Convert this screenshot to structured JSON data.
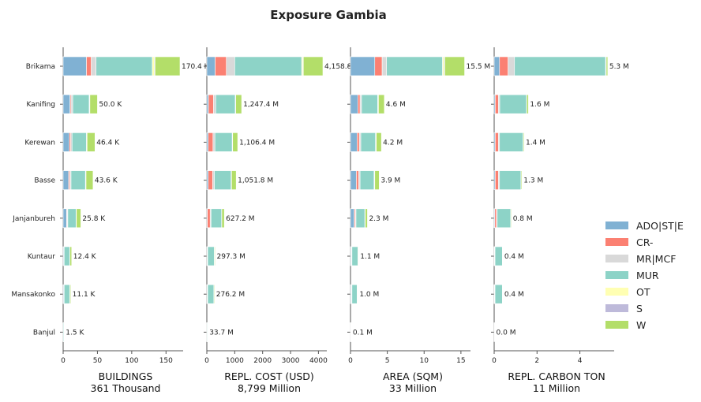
{
  "title": "Exposure Gambia",
  "colors": {
    "ADO|ST|E": "#80b1d3",
    "CR-": "#fb8072",
    "MR|MCF": "#d9d9d9",
    "MUR": "#8dd3c7",
    "OT": "#ffffb3",
    "S": "#bebada",
    "W": "#b3de69"
  },
  "chart_data": {
    "type": "bar",
    "orientation": "horizontal",
    "stacked": true,
    "grid": false,
    "legend_position": "right",
    "categories": [
      "Brikama",
      "Kanifing",
      "Kerewan",
      "Basse",
      "Janjanbureh",
      "Kuntaur",
      "Mansakonko",
      "Banjul"
    ],
    "legend": [
      "ADO|ST|E",
      "CR-",
      "MR|MCF",
      "MUR",
      "OT",
      "S",
      "W"
    ],
    "panels": [
      {
        "xlabel": "BUILDINGS",
        "xsub": "361 Thousand",
        "xlim": [
          0,
          175
        ],
        "xticks": [
          0,
          50,
          100,
          150
        ],
        "xtick_labels": [
          "0",
          "50",
          "100",
          "150"
        ],
        "totals_label": [
          "170.4 K",
          "50.0 K",
          "46.4 K",
          "43.6 K",
          "25.8 K",
          "12.4 K",
          "11.1 K",
          "1.5 K"
        ],
        "series": [
          {
            "name": "ADO|ST|E",
            "values": [
              34.0,
              10.0,
              9.0,
              8.0,
              5.0,
              1.0,
              1.0,
              0.2
            ]
          },
          {
            "name": "CR-",
            "values": [
              7.0,
              1.5,
              2.0,
              1.5,
              0.8,
              0.2,
              0.2,
              0.1
            ]
          },
          {
            "name": "MR|MCF",
            "values": [
              7.0,
              2.5,
              2.0,
              2.0,
              1.0,
              0.3,
              0.3,
              0.1
            ]
          },
          {
            "name": "MUR",
            "values": [
              82.0,
              24.0,
              21.0,
              21.0,
              12.0,
              8.0,
              8.0,
              1.0
            ]
          },
          {
            "name": "OT",
            "values": [
              3.0,
              0.5,
              0.5,
              0.5,
              0.3,
              0.2,
              0.2,
              0.0
            ]
          },
          {
            "name": "S",
            "values": [
              1.0,
              0.5,
              0.4,
              0.4,
              0.2,
              0.1,
              0.1,
              0.0
            ]
          },
          {
            "name": "W",
            "values": [
              36.4,
              11.0,
              11.5,
              10.2,
              6.5,
              2.6,
              1.3,
              0.1
            ]
          }
        ]
      },
      {
        "xlabel": "REPL. COST (USD)",
        "xsub": "8,799 Million",
        "xlim": [
          0,
          4300
        ],
        "xticks": [
          0,
          1000,
          2000,
          3000,
          4000
        ],
        "xtick_labels": [
          "0",
          "1000",
          "2000",
          "3000",
          "4000"
        ],
        "totals_label": [
          "4,158.8",
          "1,247.4 M",
          "1,106.4 M",
          "1,051.8 M",
          "627.2 M",
          "297.3 M",
          "276.2 M",
          "33.7 M"
        ],
        "series": [
          {
            "name": "ADO|ST|E",
            "values": [
              300,
              60,
              50,
              50,
              20,
              10,
              10,
              2
            ]
          },
          {
            "name": "CR-",
            "values": [
              400,
              180,
              170,
              160,
              100,
              10,
              10,
              3
            ]
          },
          {
            "name": "MR|MCF",
            "values": [
              300,
              80,
              70,
              60,
              30,
              10,
              10,
              2
            ]
          },
          {
            "name": "MUR",
            "values": [
              2400,
              700,
              620,
              600,
              380,
              240,
              220,
              25
            ]
          },
          {
            "name": "OT",
            "values": [
              40,
              10,
              10,
              10,
              5,
              2,
              2,
              0
            ]
          },
          {
            "name": "S",
            "values": [
              18.8,
              7.4,
              6.4,
              6.8,
              2.2,
              0.3,
              0.2,
              0.2
            ]
          },
          {
            "name": "W",
            "values": [
              700,
              210,
              180,
              165,
              90,
              25,
              24,
              1.5
            ]
          }
        ]
      },
      {
        "xlabel": "AREA (SQM)",
        "xsub": "33 Million",
        "xlim": [
          0,
          16.3
        ],
        "xticks": [
          0,
          5,
          10,
          15
        ],
        "xtick_labels": [
          "0",
          "5",
          "10",
          "15"
        ],
        "totals_label": [
          "15.5 M",
          "4.6 M",
          "4.2 M",
          "3.9 M",
          "2.3 M",
          "1.1 M",
          "1.0 M",
          "0.1 M"
        ],
        "series": [
          {
            "name": "ADO|ST|E",
            "values": [
              3.3,
              1.0,
              0.9,
              0.8,
              0.5,
              0.1,
              0.1,
              0.01
            ]
          },
          {
            "name": "CR-",
            "values": [
              1.0,
              0.3,
              0.3,
              0.3,
              0.15,
              0.05,
              0.05,
              0.01
            ]
          },
          {
            "name": "MR|MCF",
            "values": [
              0.6,
              0.2,
              0.2,
              0.2,
              0.1,
              0.05,
              0.05,
              0.01
            ]
          },
          {
            "name": "MUR",
            "values": [
              7.6,
              2.2,
              2.0,
              1.9,
              1.2,
              0.8,
              0.7,
              0.05
            ]
          },
          {
            "name": "OT",
            "values": [
              0.2,
              0.05,
              0.05,
              0.05,
              0.03,
              0.02,
              0.02,
              0.0
            ]
          },
          {
            "name": "S",
            "values": [
              0.1,
              0.05,
              0.05,
              0.05,
              0.02,
              0.01,
              0.01,
              0.0
            ]
          },
          {
            "name": "W",
            "values": [
              2.7,
              0.8,
              0.7,
              0.6,
              0.3,
              0.07,
              0.07,
              0.02
            ]
          }
        ]
      },
      {
        "xlabel": "REPL. CARBON TON",
        "xsub": "11 Million",
        "xlim": [
          0,
          5.6
        ],
        "xticks": [
          0,
          2,
          4
        ],
        "xtick_labels": [
          "0",
          "2",
          "4"
        ],
        "totals_label": [
          "5.3 M",
          "1.6 M",
          "1.4 M",
          "1.3 M",
          "0.8 M",
          "0.4 M",
          "0.4 M",
          "0.0 M"
        ],
        "series": [
          {
            "name": "ADO|ST|E",
            "values": [
              0.25,
              0.05,
              0.05,
              0.05,
              0.03,
              0.01,
              0.01,
              0.0
            ]
          },
          {
            "name": "CR-",
            "values": [
              0.4,
              0.15,
              0.15,
              0.15,
              0.08,
              0.02,
              0.02,
              0.0
            ]
          },
          {
            "name": "MR|MCF",
            "values": [
              0.3,
              0.06,
              0.05,
              0.05,
              0.03,
              0.01,
              0.01,
              0.0
            ]
          },
          {
            "name": "MUR",
            "values": [
              4.25,
              1.25,
              1.1,
              1.0,
              0.63,
              0.34,
              0.34,
              0.02
            ]
          },
          {
            "name": "OT",
            "values": [
              0.02,
              0.01,
              0.01,
              0.01,
              0.0,
              0.0,
              0.0,
              0.0
            ]
          },
          {
            "name": "S",
            "values": [
              0.01,
              0.0,
              0.0,
              0.0,
              0.0,
              0.0,
              0.0,
              0.0
            ]
          },
          {
            "name": "W",
            "values": [
              0.07,
              0.08,
              0.04,
              0.04,
              0.03,
              0.02,
              0.02,
              0.0
            ]
          }
        ]
      }
    ]
  }
}
